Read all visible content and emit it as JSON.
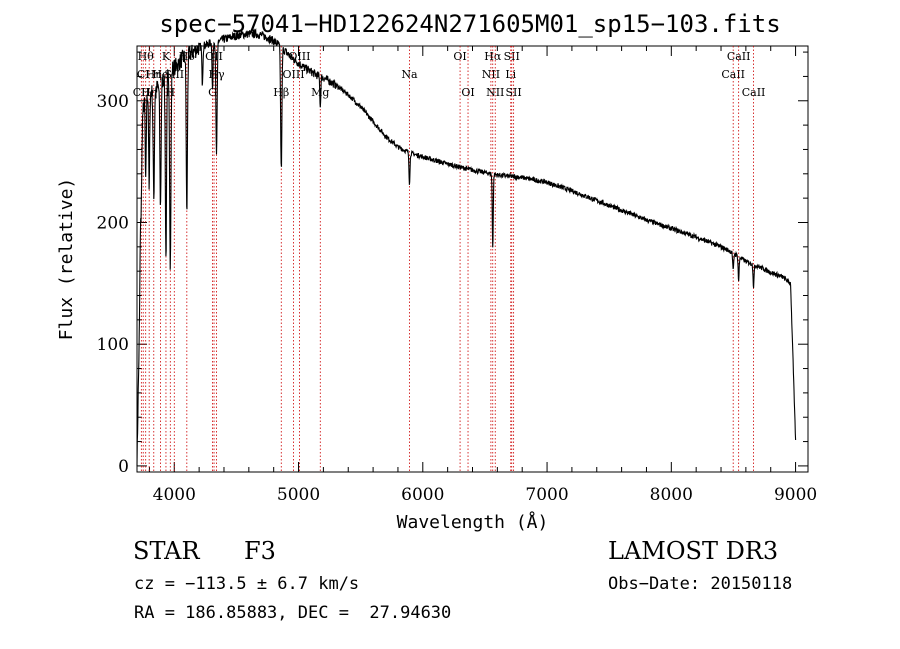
{
  "chart_data": {
    "type": "line",
    "title": "spec−57041−HD122624N271605M01_sp15−103.fits",
    "xlabel": "Wavelength (Å)",
    "ylabel": "Flux (relative)",
    "xlim": [
      3700,
      9100
    ],
    "ylim": [
      -5,
      345
    ],
    "xticks": [
      4000,
      5000,
      6000,
      7000,
      8000,
      9000
    ],
    "yticks": [
      0,
      100,
      200,
      300
    ],
    "series": [
      {
        "name": "spectrum",
        "continuum": {
          "x": [
            3700,
            3720,
            3735,
            3760,
            3790,
            3820,
            3850,
            3880,
            3910,
            3950,
            3990,
            4030,
            4070,
            4110,
            4150,
            4200,
            4260,
            4300,
            4380,
            4450,
            4520,
            4600,
            4650,
            4700,
            4750,
            4800,
            4850,
            4900,
            4950,
            5000,
            5050,
            5100,
            5150,
            5200,
            5250,
            5300,
            5400,
            5500,
            5600,
            5700,
            5800,
            5900,
            6000,
            6200,
            6400,
            6600,
            6800,
            7000,
            7200,
            7400,
            7600,
            7800,
            8000,
            8200,
            8400,
            8500,
            8600,
            8700,
            8800,
            8900,
            8960,
            9000
          ],
          "y": [
            0,
            120,
            280,
            300,
            305,
            308,
            310,
            312,
            318,
            322,
            327,
            330,
            335,
            338,
            340,
            344,
            346,
            348,
            350,
            352,
            354,
            355,
            355,
            354,
            352,
            349,
            345,
            340,
            335,
            331,
            327,
            324,
            321,
            319,
            316,
            313,
            305,
            295,
            283,
            271,
            262,
            257,
            254,
            248,
            243,
            239,
            237,
            233,
            226,
            218,
            210,
            202,
            195,
            188,
            180,
            175,
            168,
            164,
            159,
            155,
            150,
            20
          ]
        },
        "absorption_lines": [
          {
            "x": 3735,
            "depth": 60
          },
          {
            "x": 3770,
            "depth": 70
          },
          {
            "x": 3798,
            "depth": 80
          },
          {
            "x": 3835,
            "depth": 90
          },
          {
            "x": 3889,
            "depth": 100
          },
          {
            "x": 3933,
            "depth": 150
          },
          {
            "x": 3968,
            "depth": 160
          },
          {
            "x": 4101,
            "depth": 130
          },
          {
            "x": 4226,
            "depth": 30
          },
          {
            "x": 4308,
            "depth": 40
          },
          {
            "x": 4340,
            "depth": 95
          },
          {
            "x": 4861,
            "depth": 100
          },
          {
            "x": 5175,
            "depth": 25
          },
          {
            "x": 5893,
            "depth": 25
          },
          {
            "x": 6563,
            "depth": 60
          },
          {
            "x": 8498,
            "depth": 15
          },
          {
            "x": 8542,
            "depth": 20
          },
          {
            "x": 8662,
            "depth": 18
          }
        ]
      }
    ],
    "line_markers": [
      {
        "x": 3735,
        "label": "CII",
        "row": 3
      },
      {
        "x": 3750,
        "label": "CI",
        "row": 2
      },
      {
        "x": 3770,
        "label": "Hθ",
        "row": 1
      },
      {
        "x": 3798,
        "label": "Hη",
        "row": 3
      },
      {
        "x": 3835,
        "label": "Hη",
        "row": 2
      },
      {
        "x": 3889,
        "label": "He",
        "row": 2
      },
      {
        "x": 3933,
        "label": "K",
        "row": 1
      },
      {
        "x": 3968,
        "label": "H",
        "row": 3
      },
      {
        "x": 4000,
        "label": "SiII",
        "row": 2
      },
      {
        "x": 4101,
        "label": "Hδ",
        "row": 1
      },
      {
        "x": 4308,
        "label": "G",
        "row": 3
      },
      {
        "x": 4340,
        "label": "Hγ",
        "row": 2
      },
      {
        "x": 4320,
        "label": "OII",
        "row": 1
      },
      {
        "x": 4861,
        "label": "Hβ",
        "row": 3
      },
      {
        "x": 4960,
        "label": "OIII",
        "row": 2
      },
      {
        "x": 5007,
        "label": "OIII",
        "row": 1
      },
      {
        "x": 5175,
        "label": "Mg",
        "row": 3
      },
      {
        "x": 5893,
        "label": "Na",
        "row": 2
      },
      {
        "x": 6300,
        "label": "OI",
        "row": 1
      },
      {
        "x": 6364,
        "label": "OI",
        "row": 3
      },
      {
        "x": 6548,
        "label": "NII",
        "row": 2
      },
      {
        "x": 6563,
        "label": "Hα",
        "row": 1
      },
      {
        "x": 6583,
        "label": "NII",
        "row": 3
      },
      {
        "x": 6708,
        "label": "Li",
        "row": 2
      },
      {
        "x": 6716,
        "label": "SII",
        "row": 1
      },
      {
        "x": 6731,
        "label": "SII",
        "row": 3
      },
      {
        "x": 8498,
        "label": "CaII",
        "row": 2
      },
      {
        "x": 8542,
        "label": "CaII",
        "row": 1
      },
      {
        "x": 8662,
        "label": "CaII",
        "row": 3
      }
    ]
  },
  "info": {
    "object_class": "STAR",
    "subclass": "F3",
    "survey": "LAMOST DR3",
    "cz": "cz = −113.5 ± 6.7 km/s",
    "obs_date": "Obs−Date: 20150118",
    "radec": "RA = 186.85883, DEC =  27.94630"
  }
}
